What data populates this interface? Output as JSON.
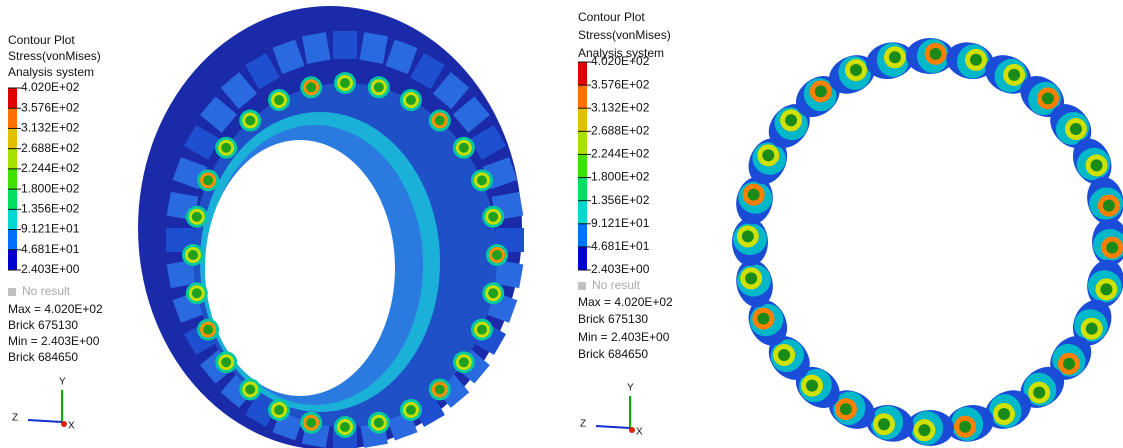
{
  "panels": [
    {
      "legend": {
        "title": [
          "Contour Plot",
          "Stress(vonMises)",
          "Analysis system"
        ],
        "levels": [
          "4.020E+02",
          "3.576E+02",
          "3.132E+02",
          "2.688E+02",
          "2.244E+02",
          "1.800E+02",
          "1.356E+02",
          "9.121E+01",
          "4.681E+01",
          "2.403E+00"
        ],
        "colors": [
          "#e00000",
          "#ff7000",
          "#e0c000",
          "#a8e000",
          "#40e000",
          "#00e060",
          "#00d8d0",
          "#0070ff",
          "#0000d0"
        ],
        "no_result": "No result",
        "stats": [
          "Max = 4.020E+02",
          "Brick 675130",
          "Min = 2.403E+00",
          "Brick 684650"
        ]
      },
      "axes": {
        "y": "Y",
        "z": "Z",
        "x": "X"
      }
    },
    {
      "legend": {
        "title": [
          "Contour Plot",
          "Stress(vonMises)",
          "Analysis system"
        ],
        "levels": [
          "4.020E+02",
          "3.576E+02",
          "3.132E+02",
          "2.688E+02",
          "2.244E+02",
          "1.800E+02",
          "1.356E+02",
          "9.121E+01",
          "4.681E+01",
          "2.403E+00"
        ],
        "colors": [
          "#e00000",
          "#ff7000",
          "#e0c000",
          "#a8e000",
          "#40e000",
          "#00e060",
          "#00d8d0",
          "#0070ff",
          "#0000d0"
        ],
        "no_result": "No result",
        "stats": [
          "Max = 4.020E+02",
          "Brick 675130",
          "Min = 2.403E+00",
          "Brick 684650"
        ]
      },
      "axes": {
        "y": "Y",
        "z": "Z",
        "x": "X"
      }
    }
  ]
}
